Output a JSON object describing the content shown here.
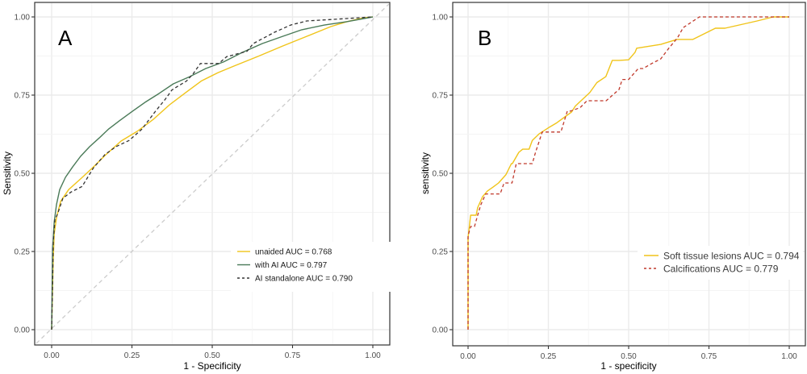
{
  "chart_data": [
    {
      "type": "line",
      "panel_label": "A",
      "title": "",
      "xlabel": "1 - Specificity",
      "ylabel": "Sensitivity",
      "xlim": [
        0,
        1
      ],
      "ylim": [
        0,
        1
      ],
      "xticks": [
        "0.00",
        "0.25",
        "0.50",
        "0.75",
        "1.00"
      ],
      "yticks": [
        "0.00",
        "0.25",
        "0.50",
        "0.75",
        "1.00"
      ],
      "grid": true,
      "legend_position": "bottom-right",
      "reference_line": {
        "name": "chance diagonal",
        "x": [
          0,
          1
        ],
        "y": [
          0,
          1
        ],
        "color": "#cccccc",
        "style": "dashed"
      },
      "series": [
        {
          "name": "unaided AUC =  0.768",
          "color": "#f0c419",
          "style": "solid",
          "x": [
            0,
            0.005,
            0.008,
            0.015,
            0.028,
            0.053,
            0.09,
            0.128,
            0.166,
            0.216,
            0.266,
            0.317,
            0.367,
            0.417,
            0.467,
            0.518,
            0.568,
            0.643,
            0.719,
            0.794,
            0.869,
            0.92,
            0.97,
            1.0
          ],
          "y": [
            0,
            0.229,
            0.307,
            0.358,
            0.41,
            0.448,
            0.482,
            0.518,
            0.557,
            0.603,
            0.634,
            0.673,
            0.719,
            0.758,
            0.796,
            0.822,
            0.843,
            0.874,
            0.907,
            0.938,
            0.969,
            0.985,
            0.997,
            1.0
          ]
        },
        {
          "name": "with AI AUC =  0.797",
          "color": "#4a7a58",
          "style": "solid",
          "x": [
            0,
            0.003,
            0.008,
            0.015,
            0.025,
            0.043,
            0.065,
            0.09,
            0.118,
            0.148,
            0.178,
            0.211,
            0.251,
            0.291,
            0.334,
            0.379,
            0.43,
            0.48,
            0.535,
            0.595,
            0.656,
            0.719,
            0.779,
            0.849,
            0.92,
            1.0
          ],
          "y": [
            0,
            0.258,
            0.345,
            0.4,
            0.448,
            0.487,
            0.52,
            0.554,
            0.585,
            0.613,
            0.642,
            0.668,
            0.698,
            0.727,
            0.755,
            0.786,
            0.809,
            0.835,
            0.856,
            0.887,
            0.915,
            0.938,
            0.959,
            0.974,
            0.985,
            1.0
          ]
        },
        {
          "name": "AI standalone AUC =  0.790",
          "color": "#333333",
          "style": "dashed",
          "x": [
            0,
            0.003,
            0.005,
            0.01,
            0.02,
            0.035,
            0.06,
            0.095,
            0.13,
            0.166,
            0.2,
            0.241,
            0.281,
            0.322,
            0.354,
            0.374,
            0.394,
            0.42,
            0.442,
            0.463,
            0.52,
            0.545,
            0.608,
            0.628,
            0.694,
            0.744,
            0.794,
            0.874,
            1.0
          ],
          "y": [
            0,
            0.155,
            0.28,
            0.35,
            0.375,
            0.42,
            0.44,
            0.458,
            0.517,
            0.56,
            0.585,
            0.605,
            0.641,
            0.697,
            0.737,
            0.766,
            0.779,
            0.795,
            0.82,
            0.851,
            0.851,
            0.873,
            0.89,
            0.915,
            0.951,
            0.974,
            0.987,
            0.992,
            1.0
          ]
        }
      ]
    },
    {
      "type": "line",
      "panel_label": "B",
      "title": "",
      "xlabel": "1 - specificity",
      "ylabel": "sensitivity",
      "xlim": [
        0,
        1
      ],
      "ylim": [
        0,
        1
      ],
      "xticks": [
        "0.00",
        "0.25",
        "0.50",
        "0.75",
        "1.00"
      ],
      "yticks": [
        "0.00",
        "0.25",
        "0.50",
        "0.75",
        "1.00"
      ],
      "grid": true,
      "legend_position": "bottom-right",
      "series": [
        {
          "name": "Soft tissue lesions AUC = 0.794",
          "color": "#f0c419",
          "style": "solid",
          "x": [
            0,
            0.0,
            0.008,
            0.025,
            0.03,
            0.045,
            0.06,
            0.078,
            0.095,
            0.118,
            0.135,
            0.138,
            0.158,
            0.17,
            0.19,
            0.2,
            0.221,
            0.254,
            0.274,
            0.322,
            0.334,
            0.379,
            0.401,
            0.429,
            0.449,
            0.47,
            0.5,
            0.52,
            0.525,
            0.6,
            0.65,
            0.7,
            0.77,
            0.8,
            0.9,
            0.95,
            1.0
          ],
          "y": [
            0,
            0.294,
            0.366,
            0.366,
            0.39,
            0.425,
            0.443,
            0.456,
            0.469,
            0.496,
            0.531,
            0.531,
            0.567,
            0.577,
            0.577,
            0.605,
            0.626,
            0.648,
            0.66,
            0.696,
            0.715,
            0.758,
            0.79,
            0.809,
            0.861,
            0.861,
            0.863,
            0.887,
            0.9,
            0.912,
            0.928,
            0.928,
            0.964,
            0.964,
            0.987,
            1.0,
            1.0
          ],
          "x_note": ""
        },
        {
          "name": "Calcifications AUC = 0.779",
          "color": "#c0392b",
          "style": "dashed",
          "x": [
            0,
            0.0,
            0.008,
            0.02,
            0.03,
            0.04,
            0.055,
            0.07,
            0.1,
            0.112,
            0.137,
            0.15,
            0.17,
            0.2,
            0.21,
            0.231,
            0.27,
            0.289,
            0.309,
            0.319,
            0.349,
            0.37,
            0.379,
            0.4,
            0.43,
            0.47,
            0.48,
            0.5,
            0.53,
            0.545,
            0.57,
            0.6,
            0.625,
            0.652,
            0.67,
            0.72,
            0.8,
            1.0
          ],
          "y": [
            0,
            0.3,
            0.33,
            0.33,
            0.366,
            0.4,
            0.434,
            0.434,
            0.434,
            0.469,
            0.469,
            0.531,
            0.531,
            0.531,
            0.567,
            0.632,
            0.632,
            0.632,
            0.699,
            0.699,
            0.71,
            0.732,
            0.732,
            0.732,
            0.732,
            0.768,
            0.8,
            0.8,
            0.835,
            0.835,
            0.85,
            0.866,
            0.9,
            0.933,
            0.966,
            1.0,
            1.0,
            1.0
          ]
        }
      ]
    }
  ]
}
